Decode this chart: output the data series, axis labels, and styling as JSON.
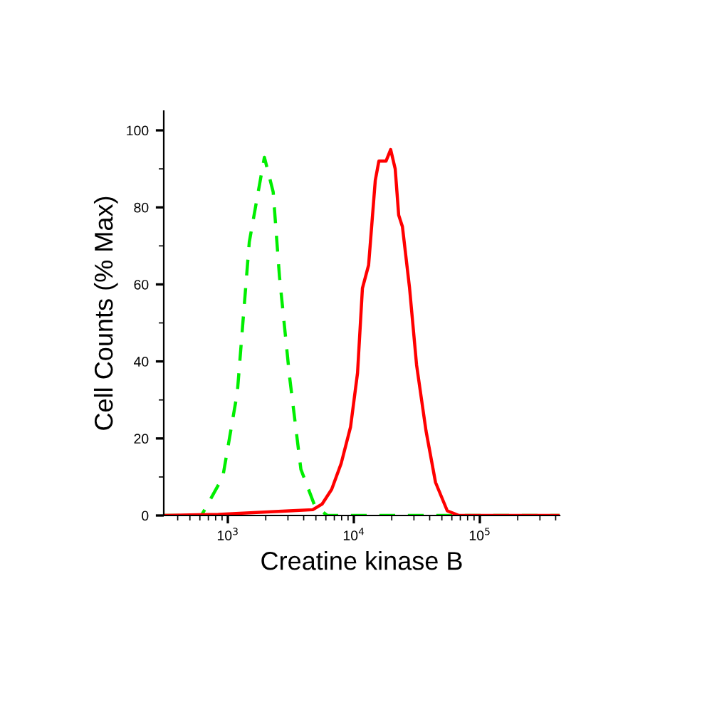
{
  "chart_data": {
    "type": "line",
    "xlabel": "Creatine kinase B",
    "ylabel": "Cell Counts (% Max)",
    "log": "x",
    "xlim": [
      310,
      430000
    ],
    "xticks": [
      {
        "value": 1000,
        "label": "10$^{3}$"
      },
      {
        "value": 10000,
        "label": "10$^{4}$"
      },
      {
        "value": 100000,
        "label": "10$^{5}$"
      }
    ],
    "ylim": [
      0,
      105
    ],
    "yticks": [
      0,
      20,
      40,
      60,
      80,
      100
    ],
    "grid": false,
    "legend": false,
    "series": [
      {
        "color": "#00ee00",
        "line_style": "dashed",
        "x": [
          310,
          617,
          912,
          1190,
          1480,
          1950,
          2290,
          2570,
          3090,
          3800,
          4900,
          6170,
          430000
        ],
        "values": [
          0,
          0,
          10,
          32,
          71,
          93,
          84,
          62,
          36,
          12,
          2.5,
          0,
          0
        ]
      },
      {
        "color": "#ff0000",
        "line_style": "solid",
        "x": [
          310,
          840,
          3070,
          4720,
          5610,
          6670,
          7930,
          9420,
          10700,
          11700,
          13100,
          14800,
          15800,
          18000,
          19600,
          21300,
          22700,
          24300,
          27700,
          31500,
          37400,
          44500,
          55200,
          68400,
          430000
        ],
        "values": [
          0,
          0.3,
          1.2,
          1.5,
          3,
          6.8,
          13.5,
          23,
          37,
          59,
          65,
          87,
          92,
          92,
          95,
          90,
          78,
          75,
          59,
          39,
          22,
          8.6,
          1.2,
          0,
          0
        ]
      }
    ]
  }
}
